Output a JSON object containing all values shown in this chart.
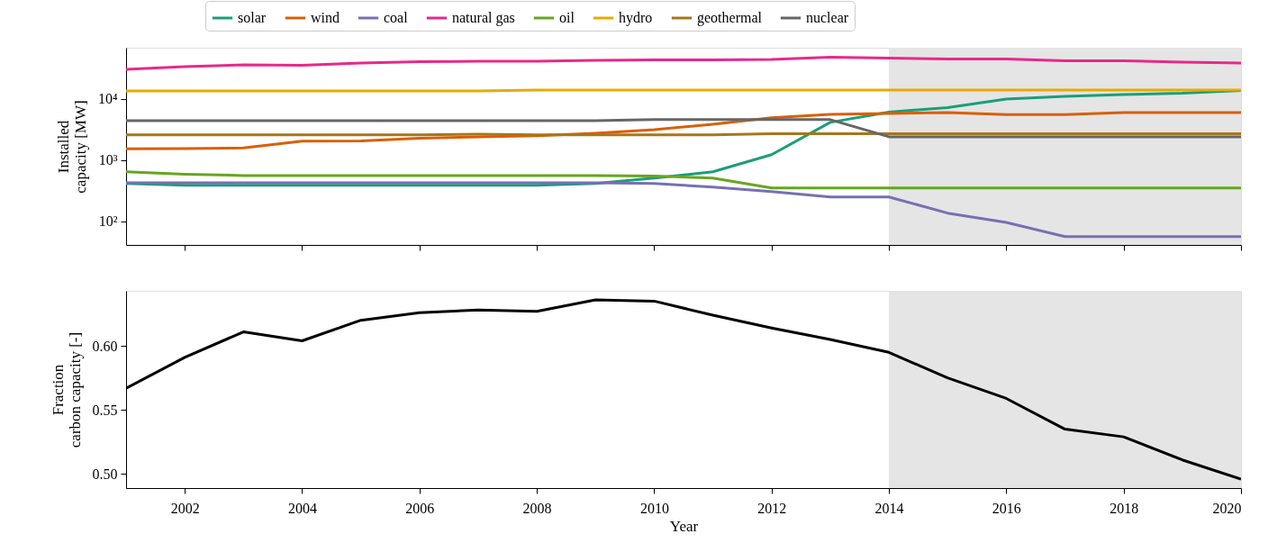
{
  "chart_data": [
    {
      "type": "line",
      "ylabel": "Installed\ncapacity [MW]",
      "log": true,
      "grid": false,
      "legend": "top",
      "marker": "none",
      "line_style": "solid",
      "tick_labels": "y",
      "x": [
        2001,
        2002,
        2003,
        2004,
        2005,
        2006,
        2007,
        2008,
        2009,
        2010,
        2011,
        2012,
        2013,
        2014,
        2015,
        2016,
        2017,
        2018,
        2019,
        2020
      ],
      "xlim": [
        2001,
        2020
      ],
      "xticks": [
        2002,
        2004,
        2006,
        2008,
        2010,
        2012,
        2014,
        2016,
        2018,
        2020
      ],
      "ylim": [
        41,
        69000
      ],
      "yticks": [
        {
          "value": 100,
          "label": "10²"
        },
        {
          "value": 1000,
          "label": "10³"
        },
        {
          "value": 10000,
          "label": "10⁴"
        }
      ],
      "bands": [
        {
          "axis": "x",
          "from": 2014,
          "to": 2020,
          "color": "#e5e5e5"
        }
      ],
      "series": [
        {
          "name": "solar",
          "color": "#1b9e77",
          "values": [
            415,
            387,
            387,
            387,
            387,
            387,
            387,
            387,
            415,
            510,
            645,
            1230,
            4150,
            6110,
            7250,
            10000,
            11070,
            11850,
            12460,
            13800
          ]
        },
        {
          "name": "wind",
          "color": "#d95f02",
          "values": [
            1530,
            1550,
            1580,
            2040,
            2070,
            2290,
            2410,
            2500,
            2760,
            3160,
            3870,
            4920,
            5630,
            5820,
            6000,
            5540,
            5540,
            6000,
            6000,
            6000
          ]
        },
        {
          "name": "coal",
          "color": "#7570b3",
          "values": [
            425,
            425,
            425,
            425,
            425,
            425,
            425,
            425,
            425,
            415,
            362,
            306,
            250,
            250,
            136,
            96,
            56,
            56,
            56,
            56
          ]
        },
        {
          "name": "natural gas",
          "color": "#e7298a",
          "values": [
            30500,
            33800,
            36200,
            35600,
            38700,
            40700,
            41500,
            41500,
            42900,
            43600,
            43600,
            44400,
            48300,
            46700,
            45100,
            45100,
            42200,
            42200,
            40100,
            38700
          ]
        },
        {
          "name": "oil",
          "color": "#66a61e",
          "values": [
            645,
            590,
            560,
            560,
            560,
            560,
            560,
            560,
            560,
            550,
            510,
            350,
            350,
            350,
            350,
            350,
            350,
            350,
            350,
            350
          ]
        },
        {
          "name": "hydro",
          "color": "#e6ab02",
          "values": [
            13500,
            13500,
            13500,
            13500,
            13500,
            13500,
            13500,
            14000,
            14000,
            14000,
            14000,
            14000,
            14000,
            14000,
            14000,
            14000,
            14000,
            14000,
            14000,
            14000
          ]
        },
        {
          "name": "geothermal",
          "color": "#a6761d",
          "values": [
            2600,
            2600,
            2600,
            2600,
            2600,
            2600,
            2650,
            2600,
            2600,
            2600,
            2600,
            2700,
            2700,
            2700,
            2700,
            2700,
            2700,
            2700,
            2700,
            2700
          ]
        },
        {
          "name": "nuclear",
          "color": "#666666",
          "values": [
            4440,
            4440,
            4440,
            4440,
            4440,
            4440,
            4440,
            4440,
            4440,
            4600,
            4600,
            4600,
            4600,
            2410,
            2400,
            2400,
            2400,
            2400,
            2400,
            2400
          ]
        }
      ]
    },
    {
      "type": "line",
      "xlabel": "Year",
      "ylabel": "Fraction\ncarbon capacity [-]",
      "grid": false,
      "legend": false,
      "marker": "none",
      "line_style": "solid",
      "x": [
        2001,
        2002,
        2003,
        2004,
        2005,
        2006,
        2007,
        2008,
        2009,
        2010,
        2011,
        2012,
        2013,
        2014,
        2015,
        2016,
        2017,
        2018,
        2019,
        2020
      ],
      "xlim": [
        2001,
        2020
      ],
      "xticks": [
        2002,
        2004,
        2006,
        2008,
        2010,
        2012,
        2014,
        2016,
        2018,
        2020
      ],
      "ylim": [
        0.489,
        0.643
      ],
      "yticks": [
        {
          "value": 0.5,
          "label": "0.50"
        },
        {
          "value": 0.55,
          "label": "0.55"
        },
        {
          "value": 0.6,
          "label": "0.60"
        }
      ],
      "bands": [
        {
          "axis": "x",
          "from": 2014,
          "to": 2020,
          "color": "#e5e5e5"
        }
      ],
      "series": [
        {
          "color": "#000000",
          "values": [
            0.567,
            0.591,
            0.611,
            0.604,
            0.62,
            0.626,
            0.628,
            0.627,
            0.636,
            0.635,
            0.624,
            0.614,
            0.605,
            0.595,
            0.575,
            0.559,
            0.535,
            0.529,
            0.511,
            0.496
          ]
        }
      ]
    }
  ]
}
